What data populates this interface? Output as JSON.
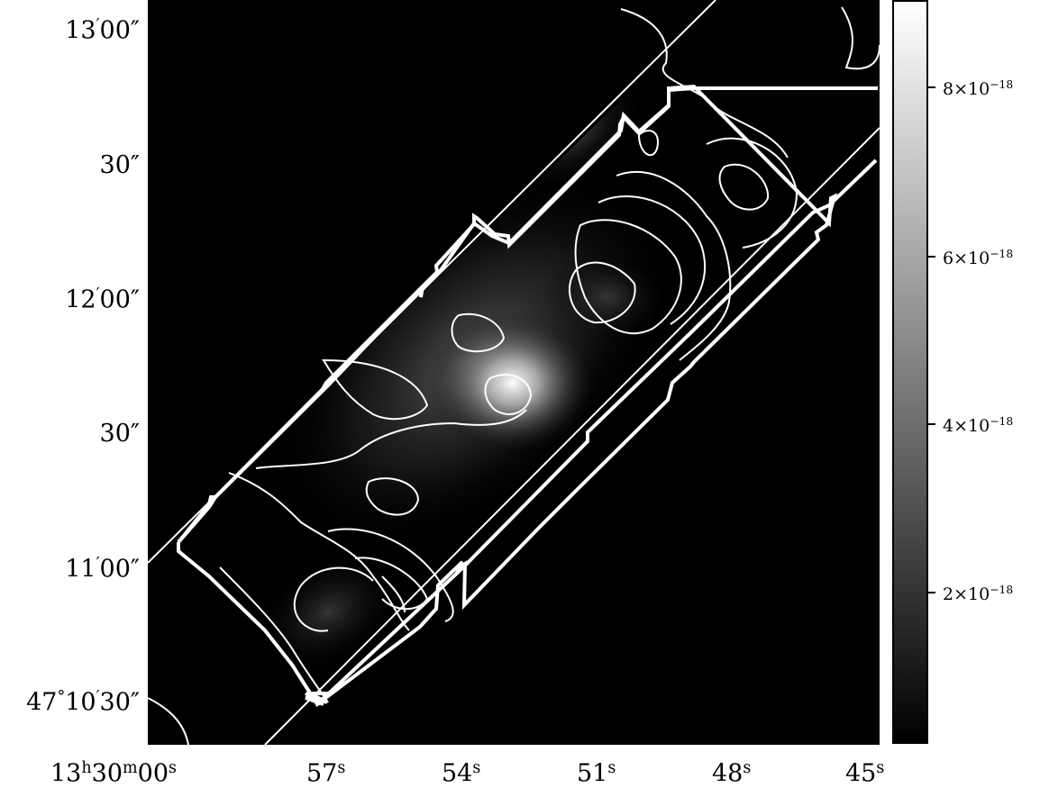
{
  "y_axis": {
    "labels": [
      {
        "deg": "",
        "min": "13",
        "sec": "00"
      },
      {
        "deg": "",
        "min": "",
        "sec": "30"
      },
      {
        "deg": "",
        "min": "12",
        "sec": "00"
      },
      {
        "deg": "",
        "min": "",
        "sec": "30"
      },
      {
        "deg": "",
        "min": "11",
        "sec": "00"
      },
      {
        "deg": "47",
        "min": "10",
        "sec": "30"
      }
    ]
  },
  "x_axis": {
    "labels": [
      {
        "h": "13",
        "m": "30",
        "s": "00"
      },
      {
        "h": "",
        "m": "",
        "s": "57"
      },
      {
        "h": "",
        "m": "",
        "s": "54"
      },
      {
        "h": "",
        "m": "",
        "s": "51"
      },
      {
        "h": "",
        "m": "",
        "s": "48"
      },
      {
        "h": "",
        "m": "",
        "s": "45"
      }
    ]
  },
  "colorbar": {
    "labels": [
      {
        "mantissa": "8",
        "exponent": "−18"
      },
      {
        "mantissa": "6",
        "exponent": "−18"
      },
      {
        "mantissa": "4",
        "exponent": "−18"
      },
      {
        "mantissa": "2",
        "exponent": "−18"
      }
    ],
    "colors": [
      "#000000",
      "#ffffff"
    ]
  },
  "colors": {
    "background": "#000000",
    "contour": "#ffffff",
    "footprint": "#ffffff"
  }
}
